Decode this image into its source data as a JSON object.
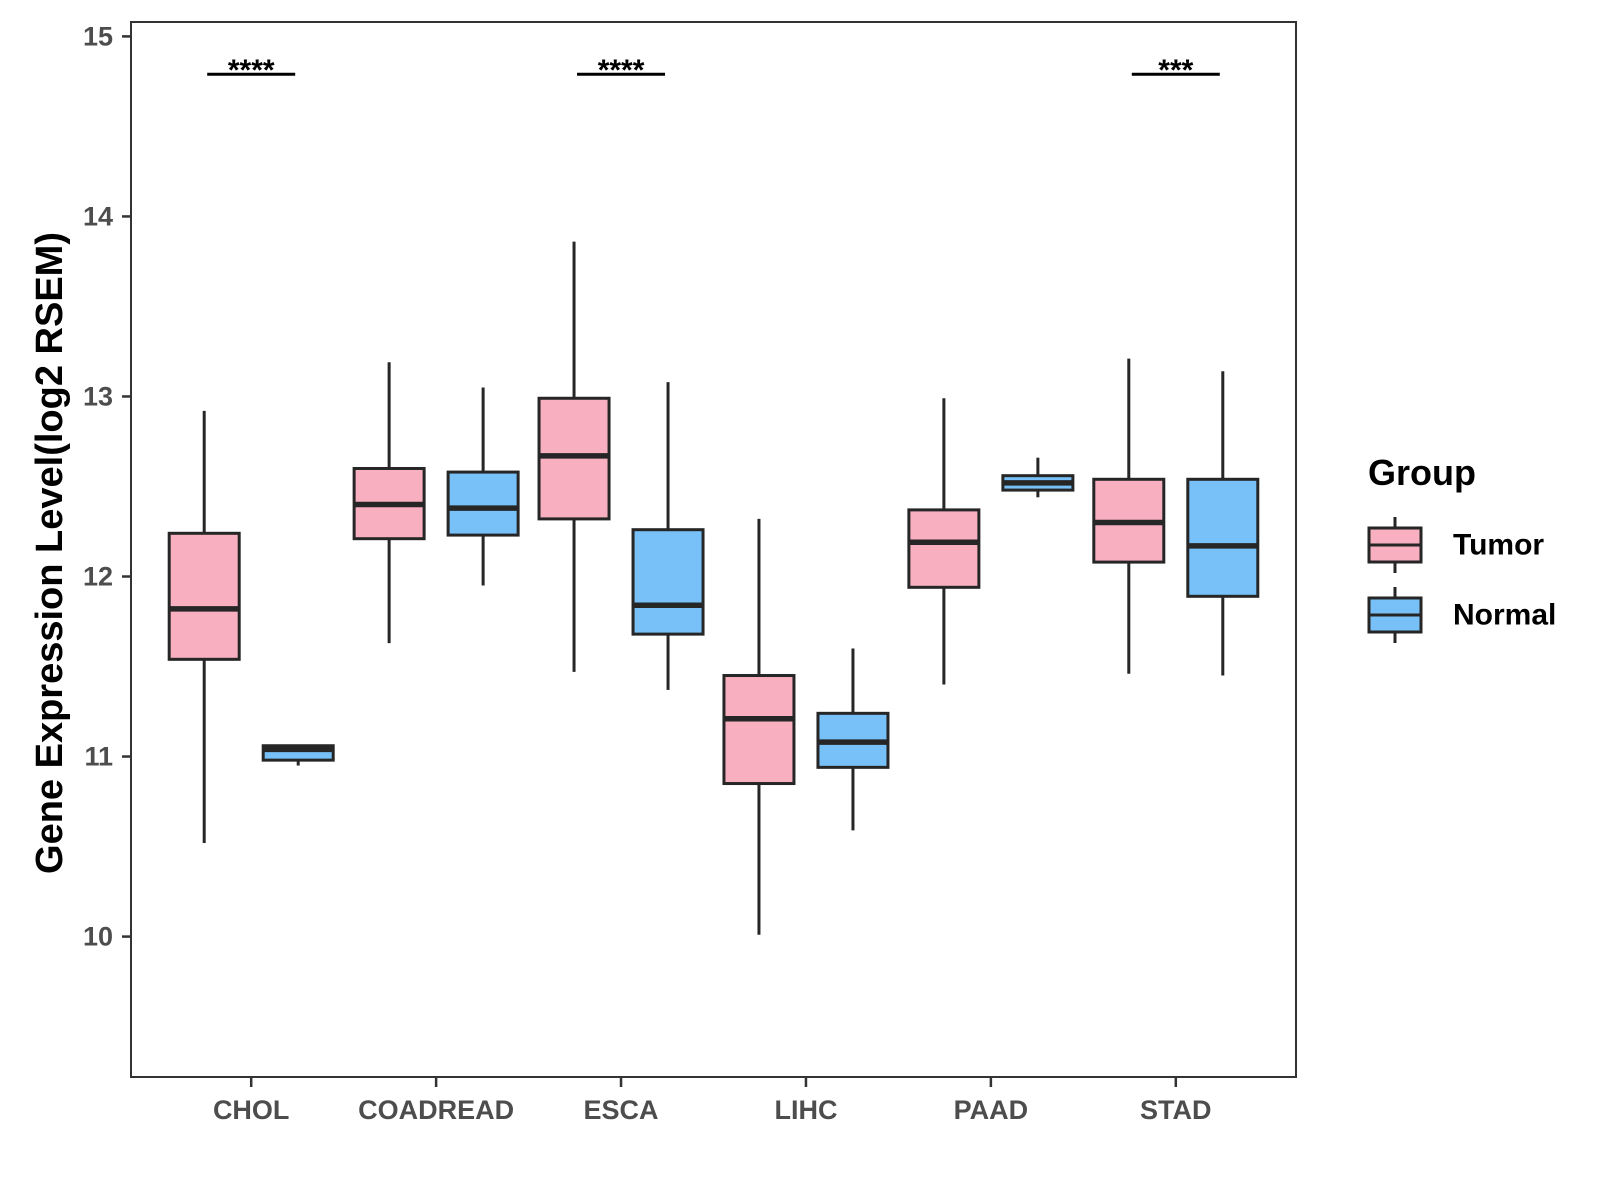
{
  "chart_data": {
    "type": "boxplot",
    "ylabel": "Gene Expression Level(log2 RSEM)",
    "xlabel": "",
    "ylim": [
      9.22,
      15.08
    ],
    "yticks": [
      10,
      11,
      12,
      13,
      14,
      15
    ],
    "ytick_labels": [
      "10",
      "11",
      "12",
      "13",
      "14",
      "15"
    ],
    "grid": false,
    "legend": {
      "title": "Group",
      "position": "right"
    },
    "categories": [
      "CHOL",
      "COADREAD",
      "ESCA",
      "LIHC",
      "PAAD",
      "STAD"
    ],
    "series": [
      {
        "name": "Tumor",
        "color": "#F8AFC0",
        "boxes": [
          {
            "min": 10.52,
            "q1": 11.54,
            "median": 11.82,
            "q3": 12.24,
            "max": 12.92
          },
          {
            "min": 11.63,
            "q1": 12.21,
            "median": 12.4,
            "q3": 12.6,
            "max": 13.19
          },
          {
            "min": 11.47,
            "q1": 12.32,
            "median": 12.67,
            "q3": 12.99,
            "max": 13.86
          },
          {
            "min": 10.01,
            "q1": 10.85,
            "median": 11.21,
            "q3": 11.45,
            "max": 12.32
          },
          {
            "min": 11.4,
            "q1": 11.94,
            "median": 12.19,
            "q3": 12.37,
            "max": 12.99
          },
          {
            "min": 11.46,
            "q1": 12.08,
            "median": 12.3,
            "q3": 12.54,
            "max": 13.21
          }
        ]
      },
      {
        "name": "Normal",
        "color": "#77C1F8",
        "boxes": [
          {
            "min": 10.95,
            "q1": 10.98,
            "median": 11.04,
            "q3": 11.06,
            "max": 11.06
          },
          {
            "min": 11.95,
            "q1": 12.23,
            "median": 12.38,
            "q3": 12.58,
            "max": 13.05
          },
          {
            "min": 11.37,
            "q1": 11.68,
            "median": 11.84,
            "q3": 12.26,
            "max": 13.08
          },
          {
            "min": 10.59,
            "q1": 10.94,
            "median": 11.08,
            "q3": 11.24,
            "max": 11.6
          },
          {
            "min": 12.44,
            "q1": 12.48,
            "median": 12.52,
            "q3": 12.56,
            "max": 12.66
          },
          {
            "min": 11.45,
            "q1": 11.89,
            "median": 12.17,
            "q3": 12.54,
            "max": 13.14
          }
        ]
      }
    ],
    "significance": [
      {
        "category": "CHOL",
        "label": "****",
        "y": 14.79
      },
      {
        "category": "COADREAD",
        "label": "",
        "y": 14.79
      },
      {
        "category": "ESCA",
        "label": "****",
        "y": 14.79
      },
      {
        "category": "LIHC",
        "label": "",
        "y": 14.79
      },
      {
        "category": "PAAD",
        "label": "",
        "y": 14.79
      },
      {
        "category": "STAD",
        "label": "***",
        "y": 14.79
      }
    ]
  }
}
